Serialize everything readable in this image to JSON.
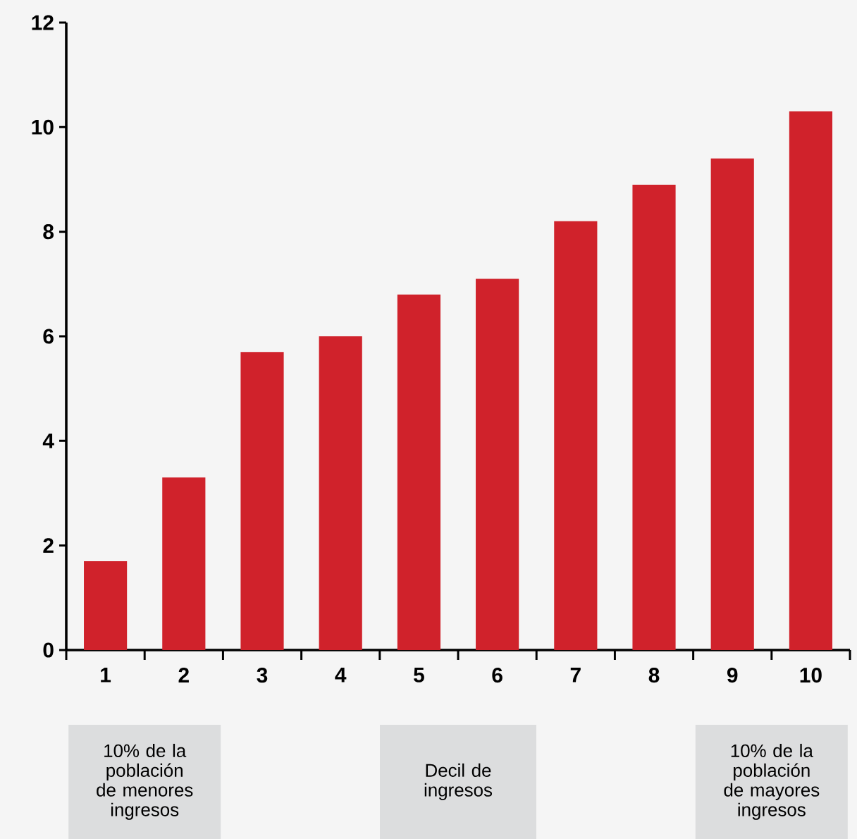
{
  "chart_data": {
    "type": "bar",
    "xlabel": "Decil de ingresos",
    "categories": [
      "1",
      "2",
      "3",
      "4",
      "5",
      "6",
      "7",
      "8",
      "9",
      "10"
    ],
    "values": [
      1.7,
      3.3,
      5.7,
      6.0,
      6.8,
      7.1,
      8.2,
      8.9,
      9.4,
      10.3
    ],
    "color": "#d0222b",
    "ylim": [
      0,
      12
    ],
    "yticks": [
      0,
      2,
      4,
      6,
      8,
      10,
      12
    ],
    "annotations": [
      "10% de la población de menores ingresos",
      "10% de la población de mayores ingresos"
    ]
  }
}
